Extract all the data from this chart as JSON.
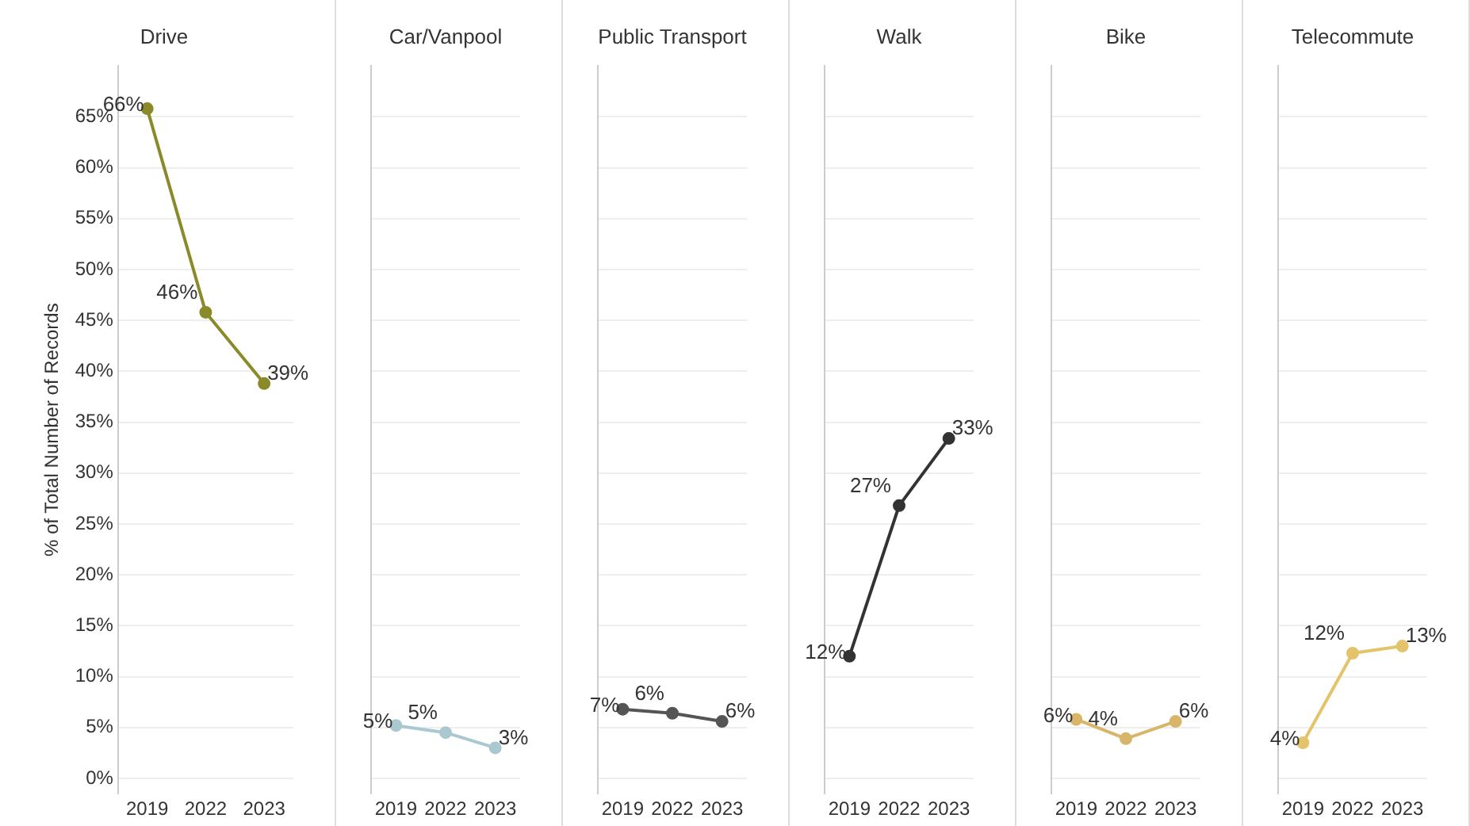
{
  "chart_data": [
    {
      "type": "line",
      "title": "Drive",
      "ylabel": "% of Total Number of Records",
      "categories": [
        "2019",
        "2022",
        "2023"
      ],
      "values": [
        65.8,
        45.8,
        38.8
      ],
      "value_labels": [
        "66%",
        "46%",
        "39%"
      ],
      "color": "#8a8a2a",
      "marker": "circle",
      "grid": "y",
      "ylim": [
        -1.5,
        70
      ],
      "yticks": [
        {
          "value": 0,
          "label": "0%"
        },
        {
          "value": 5,
          "label": "5%"
        },
        {
          "value": 10,
          "label": "10%"
        },
        {
          "value": 15,
          "label": "15%"
        },
        {
          "value": 20,
          "label": "20%"
        },
        {
          "value": 25,
          "label": "25%"
        },
        {
          "value": 30,
          "label": "30%"
        },
        {
          "value": 35,
          "label": "35%"
        },
        {
          "value": 40,
          "label": "40%"
        },
        {
          "value": 45,
          "label": "45%"
        },
        {
          "value": 50,
          "label": "50%"
        },
        {
          "value": 55,
          "label": "55%"
        },
        {
          "value": 60,
          "label": "60%"
        },
        {
          "value": 65,
          "label": "65%"
        }
      ]
    },
    {
      "type": "line",
      "title": "Car/Vanpool",
      "categories": [
        "2019",
        "2022",
        "2023"
      ],
      "values": [
        5.2,
        4.5,
        3.0
      ],
      "value_labels": [
        "5%",
        "5%",
        "3%"
      ],
      "color": "#a9c8d0",
      "marker": "circle",
      "grid": "y",
      "tick_labels": "x",
      "ylim": [
        -1.5,
        70
      ],
      "yticks": [
        0,
        5,
        10,
        15,
        20,
        25,
        30,
        35,
        40,
        45,
        50,
        55,
        60,
        65
      ]
    },
    {
      "type": "line",
      "title": "Public Transport",
      "categories": [
        "2019",
        "2022",
        "2023"
      ],
      "values": [
        6.8,
        6.4,
        5.6
      ],
      "value_labels": [
        "7%",
        "6%",
        "6%"
      ],
      "color": "#555555",
      "marker": "circle",
      "grid": "y",
      "tick_labels": "x",
      "ylim": [
        -1.5,
        70
      ],
      "yticks": [
        0,
        5,
        10,
        15,
        20,
        25,
        30,
        35,
        40,
        45,
        50,
        55,
        60,
        65
      ]
    },
    {
      "type": "line",
      "title": "Walk",
      "categories": [
        "2019",
        "2022",
        "2023"
      ],
      "values": [
        12.0,
        26.8,
        33.4
      ],
      "value_labels": [
        "12%",
        "27%",
        "33%"
      ],
      "color": "#333333",
      "marker": "circle",
      "grid": "y",
      "tick_labels": "x",
      "ylim": [
        -1.5,
        70
      ],
      "yticks": [
        0,
        5,
        10,
        15,
        20,
        25,
        30,
        35,
        40,
        45,
        50,
        55,
        60,
        65
      ]
    },
    {
      "type": "line",
      "title": "Bike",
      "categories": [
        "2019",
        "2022",
        "2023"
      ],
      "values": [
        5.8,
        3.9,
        5.6
      ],
      "value_labels": [
        "6%",
        "4%",
        "6%"
      ],
      "color": "#d9b56a",
      "marker": "circle",
      "grid": "y",
      "tick_labels": "x",
      "ylim": [
        -1.5,
        70
      ],
      "yticks": [
        0,
        5,
        10,
        15,
        20,
        25,
        30,
        35,
        40,
        45,
        50,
        55,
        60,
        65
      ]
    },
    {
      "type": "line",
      "title": "Telecommute",
      "categories": [
        "2019",
        "2022",
        "2023"
      ],
      "values": [
        3.5,
        12.3,
        13.0
      ],
      "value_labels": [
        "4%",
        "12%",
        "13%"
      ],
      "color": "#e3c46a",
      "marker": "circle",
      "grid": "y",
      "tick_labels": "x",
      "ylim": [
        -1.5,
        70
      ],
      "yticks": [
        0,
        5,
        10,
        15,
        20,
        25,
        30,
        35,
        40,
        45,
        50,
        55,
        60,
        65
      ]
    }
  ]
}
